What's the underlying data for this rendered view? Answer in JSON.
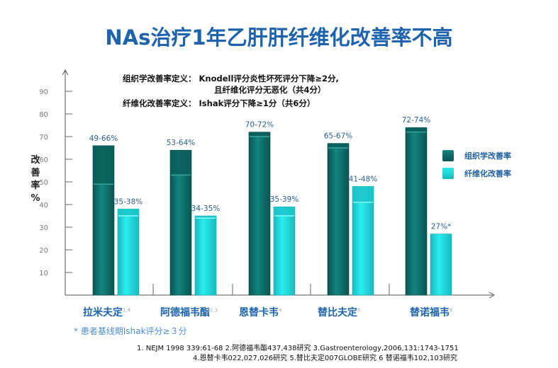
{
  "title": "NAs治疗1年乙肝肝纤维化改善率不高",
  "definitions": {
    "line1": "组织学改善率定义： Knodell评分炎性坏死评分下降≥2分,",
    "line2": "且纤维化评分无恶化（共4分）",
    "line3": "纤维化改善率定义： Ishak评分下降≥1分（共6分）"
  },
  "footnote": "* 患者基线期Ishak评分≥３分",
  "references": {
    "line1": "1. NEJM 1998 339:61-68   2.阿德福韦酯437,438研究   3.Gastroenterology,2006,131:1743-1751",
    "line2": "4.恩替卡韦022,027,026研究  5.替比夫定007GLOBE研究  6 替诺福韦102,103研究"
  },
  "chart_data": {
    "type": "bar",
    "ylabel": "改善率%",
    "ylim": [
      0,
      90
    ],
    "yticks": [
      10,
      20,
      30,
      40,
      50,
      60,
      70,
      80,
      90
    ],
    "categories": [
      "拉米夫定",
      "阿德福韦酯",
      "恩替卡韦",
      "替比夫定",
      "替诺福韦"
    ],
    "category_refs": [
      "1,4",
      "2,3",
      "4",
      "5",
      "6"
    ],
    "legend_position": "right",
    "series": [
      {
        "name": "组织学改善率",
        "color": "#0e6f6b",
        "ranges": [
          [
            49,
            66
          ],
          [
            53,
            64
          ],
          [
            70,
            72
          ],
          [
            65,
            67
          ],
          [
            72,
            74
          ]
        ],
        "labels": [
          "49-66%",
          "53-64%",
          "70-72%",
          "65-67%",
          "72-74%"
        ]
      },
      {
        "name": "纤维化改善率",
        "color": "#22d8dc",
        "ranges": [
          [
            35,
            38
          ],
          [
            34,
            35
          ],
          [
            35,
            39
          ],
          [
            41,
            48
          ],
          [
            27,
            27
          ]
        ],
        "labels": [
          "35-38%",
          "34-35%",
          "35-39%",
          "41-48%",
          "27%*"
        ]
      }
    ]
  }
}
